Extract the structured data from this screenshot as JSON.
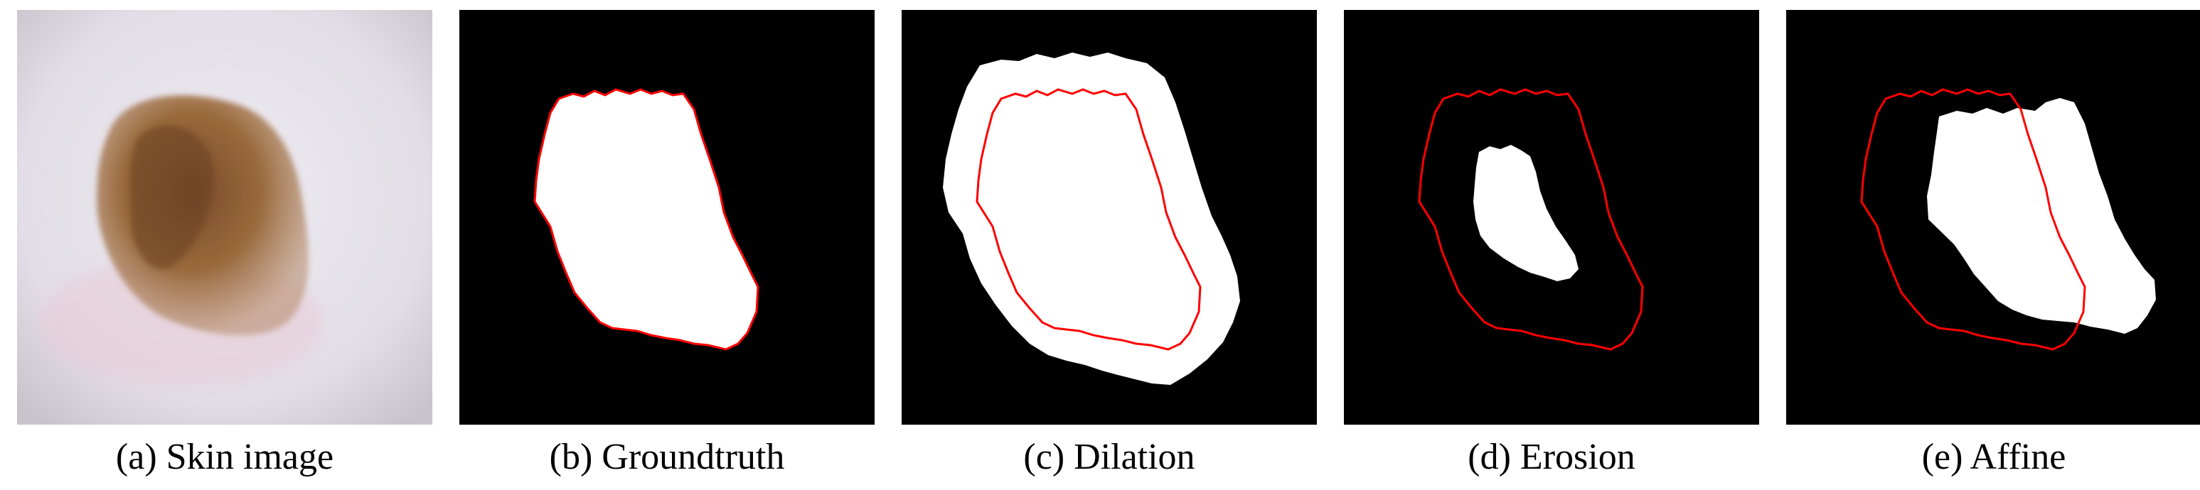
{
  "figure": {
    "panels": [
      {
        "id": "a",
        "caption": "(a) Skin image"
      },
      {
        "id": "b",
        "caption": "(b) Groundtruth"
      },
      {
        "id": "c",
        "caption": "(c) Dilation"
      },
      {
        "id": "d",
        "caption": "(d) Erosion"
      },
      {
        "id": "e",
        "caption": "(e) Affine"
      }
    ]
  },
  "colors": {
    "mask_background": "#000000",
    "mask_foreground": "#ffffff",
    "contour": "#ff0000",
    "skin": "#e6e2ea",
    "lesion": "#8a5a34"
  },
  "icons": []
}
